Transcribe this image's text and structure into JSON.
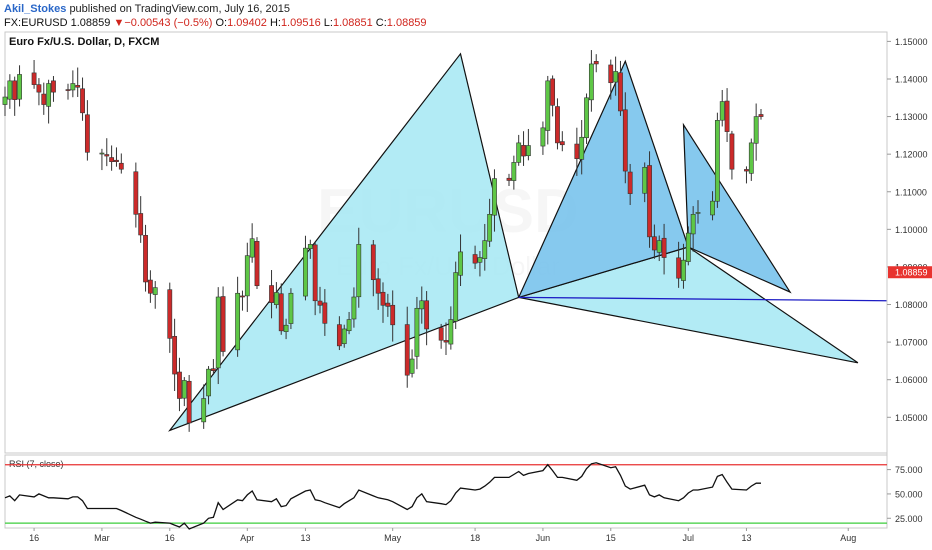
{
  "header": {
    "author": "Akil_Stokes",
    "published_text": "published on TradingView.com, July 16, 2015",
    "symbol": "FX:EURUSD",
    "last": "1.08859",
    "change_arrow": "▼",
    "change": "−0.00543 (−0.5%)",
    "o_label": "O:",
    "o_value": "1.09402",
    "h_label": "H:",
    "h_value": "1.09516",
    "l_label": "L:",
    "l_value": "1.08851",
    "c_label": "C:",
    "c_value": "1.08859"
  },
  "colors": {
    "up": "#5ec746",
    "down": "#cc2a2a",
    "pattern_fill": "#a4e8f3",
    "pattern_fill_inner": "#79c3ec",
    "support_line": "#1c1cc4",
    "rsi_upper": "#e83232",
    "rsi_lower": "#3ccd3c",
    "price_tag": "#e8332f"
  },
  "chart_data": [
    {
      "type": "candlestick",
      "title": "Euro Fx/U.S. Dollar, D, FXCM",
      "watermark": "EURUSD",
      "watermark_sub": "Euro Fx/U.S. Dollar",
      "ylim": [
        1.0405,
        1.1525
      ],
      "yticks": [
        "1.15000",
        "1.14000",
        "1.13000",
        "1.12000",
        "1.11000",
        "1.10000",
        "1.09000",
        "1.08000",
        "1.07000",
        "1.06000",
        "1.05000"
      ],
      "last_price_label": "1.08859",
      "xticks": [
        {
          "label": "16",
          "date": "2015-02-16"
        },
        {
          "label": "Mar",
          "date": "2015-03-02"
        },
        {
          "label": "16",
          "date": "2015-03-16"
        },
        {
          "label": "Apr",
          "date": "2015-04-01"
        },
        {
          "label": "13",
          "date": "2015-04-13"
        },
        {
          "label": "May",
          "date": "2015-05-01"
        },
        {
          "label": "18",
          "date": "2015-05-18"
        },
        {
          "label": "Jun",
          "date": "2015-06-01"
        },
        {
          "label": "15",
          "date": "2015-06-15"
        },
        {
          "label": "Jul",
          "date": "2015-07-01"
        },
        {
          "label": "13",
          "date": "2015-07-13"
        },
        {
          "label": "Aug",
          "date": "2015-08-03"
        }
      ],
      "x_range": [
        "2015-02-10",
        "2015-08-11"
      ],
      "closes": [
        1.1352,
        1.1395,
        1.1345,
        1.1412,
        1.1385,
        1.1365,
        1.1332,
        1.1388,
        1.1365,
        1.137,
        1.1388,
        1.1378,
        1.131,
        1.1205,
        1.1203,
        1.1195,
        1.118,
        1.118,
        1.116,
        1.104,
        1.0985,
        1.086,
        1.083,
        1.0845,
        1.071,
        1.0615,
        1.055,
        1.0598,
        1.0485,
        1.055,
        1.0628,
        1.0624,
        1.082,
        1.0675,
        1.083,
        1.082,
        1.093,
        1.0975,
        1.085,
        1.0805,
        1.0832,
        1.073,
        1.0745,
        1.083,
        1.095,
        1.096,
        1.081,
        1.0798,
        1.075,
        1.069,
        1.0735,
        1.076,
        1.082,
        1.096,
        1.0866,
        1.083,
        1.0798,
        1.0795,
        1.0746,
        1.0612,
        1.0655,
        1.079,
        1.081,
        1.0735,
        1.0705,
        1.07,
        1.076,
        1.0885,
        1.094,
        1.091,
        1.0925,
        1.097,
        1.104,
        1.1135,
        1.113,
        1.1178,
        1.123,
        1.1195,
        1.1223,
        1.127,
        1.1395,
        1.133,
        1.123,
        1.1225,
        1.1188,
        1.1245,
        1.135,
        1.144,
        1.144,
        1.139,
        1.142,
        1.1315,
        1.1155,
        1.1095,
        1.1165,
        1.098,
        1.0945,
        1.097,
        1.0925,
        1.087,
        1.0918,
        1.099,
        1.104,
        1.1045,
        1.1075,
        1.129,
        1.134,
        1.126,
        1.116,
        1.1155,
        1.123,
        1.13,
        1.13,
        1.1262,
        1.1245,
        1.1285,
        1.1345,
        1.119,
        1.1233,
        1.125,
        1.129,
        1.132,
        1.139,
        1.1405,
        1.1375,
        1.1345,
        1.117,
        1.1185,
        1.1155,
        1.12,
        1.12,
        1.106,
        1.106,
        1.115,
        1.111,
        1.106,
        1.096,
        1.1085,
        1.1015,
        1.1005,
        1.1045,
        1.109,
        1.115,
        1.101,
        1.0945,
        1.1,
        1.1005,
        1.0912,
        1.0885
      ],
      "rsi": {
        "label": "RSI (7, close)",
        "ylim": [
          15,
          90
        ],
        "levels": [
          80,
          20
        ],
        "yticks": [
          "75.000",
          "50.000",
          "25.000"
        ],
        "values": [
          46,
          48,
          43,
          49,
          47,
          50,
          48,
          46,
          46,
          45,
          47,
          47,
          43,
          35,
          35,
          35,
          35,
          35,
          33,
          26,
          24,
          22,
          20,
          21,
          20,
          18,
          16,
          20,
          14,
          20,
          25,
          26,
          41,
          34,
          44,
          43,
          49,
          53,
          44,
          42,
          45,
          37,
          38,
          45,
          53,
          54,
          44,
          43,
          41,
          36,
          40,
          43,
          46,
          54,
          48,
          46,
          45,
          44,
          42,
          34,
          37,
          46,
          50,
          42,
          40,
          39,
          43,
          51,
          56,
          54,
          55,
          58,
          62,
          67,
          67,
          70,
          73,
          69,
          71,
          74,
          80,
          74,
          67,
          67,
          64,
          68,
          76,
          81,
          82,
          77,
          78,
          69,
          58,
          55,
          59,
          49,
          47,
          49,
          46,
          43,
          46,
          51,
          54,
          54,
          57,
          68,
          70,
          62,
          55,
          54,
          58,
          61,
          61,
          59,
          57,
          59,
          62,
          55,
          56,
          57,
          58,
          60,
          62,
          62,
          61,
          60,
          46,
          47,
          45,
          48,
          48,
          42,
          42,
          47,
          45,
          43,
          38,
          45,
          41,
          41,
          43,
          45,
          50,
          40,
          37,
          40,
          40,
          35,
          33
        ]
      },
      "pattern": {
        "left_triangle": [
          [
            "2015-03-16",
            1.0465
          ],
          [
            "2015-05-15",
            1.1467
          ],
          [
            "2015-05-27",
            1.0819
          ]
        ],
        "right_triangle": [
          [
            "2015-05-27",
            1.0819
          ],
          [
            "2015-06-18",
            1.1447
          ],
          [
            "2015-07-01",
            1.0953
          ]
        ],
        "big_triangle_apex": [
          "2015-08-05",
          1.0645
        ],
        "inner_triangle": [
          [
            "2015-07-01",
            1.0953
          ],
          [
            "2015-06-30",
            1.1278
          ],
          [
            "2015-07-22",
            1.0833
          ]
        ],
        "support_line": [
          [
            "2015-05-27",
            1.0819
          ],
          [
            "2015-08-11",
            1.081
          ]
        ]
      }
    }
  ]
}
